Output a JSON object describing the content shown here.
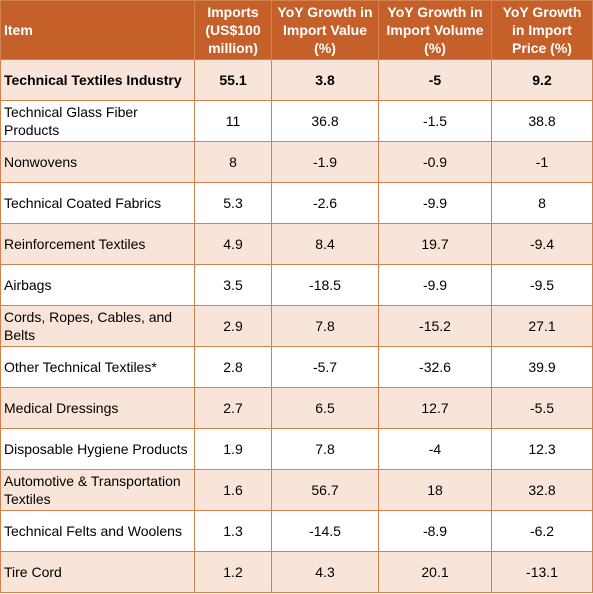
{
  "table": {
    "headers": [
      "Item",
      "Imports (US$100 million)",
      "YoY Growth in Import Value (%)",
      "YoY Growth in Import Volume (%)",
      "YoY Growth in Import Price (%)"
    ],
    "rows": [
      {
        "item": "Technical Textiles Industry",
        "imports": "55.1",
        "value_growth": "3.8",
        "volume_growth": "-5",
        "price_growth": "9.2"
      },
      {
        "item": "Technical Glass Fiber Products",
        "imports": "11",
        "value_growth": "36.8",
        "volume_growth": "-1.5",
        "price_growth": "38.8"
      },
      {
        "item": "Nonwovens",
        "imports": "8",
        "value_growth": "-1.9",
        "volume_growth": "-0.9",
        "price_growth": "-1"
      },
      {
        "item": "Technical Coated Fabrics",
        "imports": "5.3",
        "value_growth": "-2.6",
        "volume_growth": "-9.9",
        "price_growth": "8"
      },
      {
        "item": "Reinforcement Textiles",
        "imports": "4.9",
        "value_growth": "8.4",
        "volume_growth": "19.7",
        "price_growth": "-9.4"
      },
      {
        "item": "Airbags",
        "imports": "3.5",
        "value_growth": "-18.5",
        "volume_growth": "-9.9",
        "price_growth": "-9.5"
      },
      {
        "item": "Cords, Ropes, Cables, and Belts",
        "imports": "2.9",
        "value_growth": "7.8",
        "volume_growth": "-15.2",
        "price_growth": "27.1"
      },
      {
        "item": "Other Technical Textiles*",
        "imports": "2.8",
        "value_growth": "-5.7",
        "volume_growth": "-32.6",
        "price_growth": "39.9"
      },
      {
        "item": "Medical Dressings",
        "imports": "2.7",
        "value_growth": "6.5",
        "volume_growth": "12.7",
        "price_growth": "-5.5"
      },
      {
        "item": "Disposable Hygiene Products",
        "imports": "1.9",
        "value_growth": "7.8",
        "volume_growth": "-4",
        "price_growth": "12.3"
      },
      {
        "item": "Automotive & Transportation Textiles",
        "imports": "1.6",
        "value_growth": "56.7",
        "volume_growth": "18",
        "price_growth": "32.8"
      },
      {
        "item": "Technical Felts and Woolens",
        "imports": "1.3",
        "value_growth": "-14.5",
        "volume_growth": "-8.9",
        "price_growth": "-6.2"
      },
      {
        "item": "Tire Cord",
        "imports": "1.2",
        "value_growth": "4.3",
        "volume_growth": "20.1",
        "price_growth": "-13.1"
      }
    ]
  },
  "colors": {
    "header_bg": "#c5602a",
    "row_shade": "#f9e4d9",
    "border": "#d2824e"
  }
}
